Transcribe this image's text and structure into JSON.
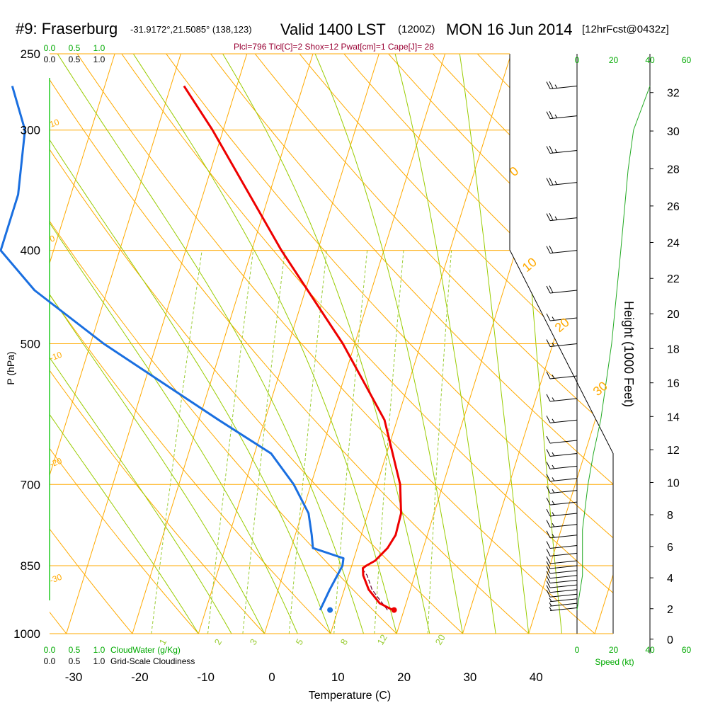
{
  "header": {
    "station": "#9: Fraserburg",
    "coords": "-31.9172°,21.5085° (138,123)",
    "valid": "Valid 1400 LST",
    "zulu": "(1200Z)",
    "date": "MON 16 Jun 2014",
    "forecast": "[12hrFcst@0432z]",
    "stats": "Plcl=796 Tlcl[C]=2 Shox=12 Pwat[cm]=1 Cape[J]= 28"
  },
  "colors": {
    "isotherm": "#ffaa00",
    "isobar": "#ffaa00",
    "dry_adiabat": "#ffaa00",
    "moist_adiabat": "#99cc00",
    "mixing_ratio": "#99cc33",
    "temperature": "#ee0000",
    "dewpoint": "#1a6fe0",
    "parcel": "#660033",
    "speed": "#22aa22",
    "green_text": "#00aa00"
  },
  "chart_data": {
    "type": "skew-t",
    "xlabel": "Temperature (C)",
    "ylabel": "P (hPa)",
    "y2label": "Height (1000 Feet)",
    "pressure_ticks": [
      "250",
      "300",
      "400",
      "500",
      "700",
      "850",
      "1000"
    ],
    "temperature_ticks": [
      "-30",
      "-20",
      "-10",
      "0",
      "10",
      "20",
      "30",
      "40"
    ],
    "height_ticks": [
      "0",
      "2",
      "4",
      "6",
      "8",
      "10",
      "12",
      "14",
      "16",
      "18",
      "20",
      "22",
      "24",
      "26",
      "28",
      "30",
      "32"
    ],
    "dry_adiabat_labels": [
      "10",
      "0",
      "-10",
      "-20",
      "-30",
      "0",
      "10",
      "20",
      "30"
    ],
    "mixing_ratio_labels": [
      "1",
      "2",
      "3",
      "5",
      "8",
      "12",
      "20"
    ],
    "cloud_top_labels": [
      "0.0",
      "0.5",
      "1.0"
    ],
    "cloud_top_labels2": [
      "0.0",
      "0.5",
      "1.0"
    ],
    "cloud_bottom_labels": [
      "0.0",
      "0.5",
      "1.0"
    ],
    "cloud_bottom_labels2": [
      "0.0",
      "0.5",
      "1.0"
    ],
    "cloudwater_label": "CloudWater (g/Kg)",
    "cloudiness_label": "Grid-Scale Cloudiness",
    "speed_label": "Speed (kt)",
    "speed_ticks": [
      "0",
      "20",
      "40",
      "60"
    ],
    "temperature_profile": [
      {
        "p": 945,
        "t": 18.3
      },
      {
        "p": 930,
        "t": 16.0
      },
      {
        "p": 900,
        "t": 13.7
      },
      {
        "p": 870,
        "t": 12.2
      },
      {
        "p": 855,
        "t": 11.8
      },
      {
        "p": 850,
        "t": 12.2
      },
      {
        "p": 840,
        "t": 13.3
      },
      {
        "p": 815,
        "t": 14.6
      },
      {
        "p": 790,
        "t": 15.2
      },
      {
        "p": 750,
        "t": 15.0
      },
      {
        "p": 700,
        "t": 13.5
      },
      {
        "p": 600,
        "t": 8.1
      },
      {
        "p": 500,
        "t": -1.8
      },
      {
        "p": 400,
        "t": -15.5
      },
      {
        "p": 300,
        "t": -31.6
      },
      {
        "p": 270,
        "t": -38.0
      }
    ],
    "dewpoint_profile": [
      {
        "p": 945,
        "t": 7.3
      },
      {
        "p": 900,
        "t": 7.8
      },
      {
        "p": 850,
        "t": 8.6
      },
      {
        "p": 835,
        "t": 8.4
      },
      {
        "p": 815,
        "t": 3.3
      },
      {
        "p": 790,
        "t": 2.5
      },
      {
        "p": 750,
        "t": 1.0
      },
      {
        "p": 700,
        "t": -2.6
      },
      {
        "p": 650,
        "t": -7.5
      },
      {
        "p": 600,
        "t": -17.0
      },
      {
        "p": 500,
        "t": -38.0
      },
      {
        "p": 440,
        "t": -51.0
      },
      {
        "p": 400,
        "t": -58.0
      },
      {
        "p": 350,
        "t": -58.0
      },
      {
        "p": 300,
        "t": -60.0
      },
      {
        "p": 270,
        "t": -64.0
      }
    ],
    "parcel_profile": [
      {
        "p": 945,
        "t": 17.5
      },
      {
        "p": 900,
        "t": 14.2
      },
      {
        "p": 870,
        "t": 12.8
      },
      {
        "p": 860,
        "t": 12.0
      }
    ],
    "surface_temperature": 18.5,
    "surface_dewpoint": 8.8,
    "wind_speed_profile": [
      {
        "p": 945,
        "kt": 0
      },
      {
        "p": 870,
        "kt": 3
      },
      {
        "p": 820,
        "kt": 3
      },
      {
        "p": 780,
        "kt": 3
      },
      {
        "p": 700,
        "kt": 6
      },
      {
        "p": 650,
        "kt": 9
      },
      {
        "p": 600,
        "kt": 13
      },
      {
        "p": 500,
        "kt": 19
      },
      {
        "p": 400,
        "kt": 24
      },
      {
        "p": 330,
        "kt": 28
      },
      {
        "p": 300,
        "kt": 31
      },
      {
        "p": 270,
        "kt": 40
      }
    ],
    "wind_barbs": [
      {
        "p": 940,
        "kt": 8
      },
      {
        "p": 930,
        "kt": 8
      },
      {
        "p": 920,
        "kt": 9
      },
      {
        "p": 910,
        "kt": 10
      },
      {
        "p": 900,
        "kt": 10
      },
      {
        "p": 890,
        "kt": 10
      },
      {
        "p": 880,
        "kt": 12
      },
      {
        "p": 870,
        "kt": 10
      },
      {
        "p": 860,
        "kt": 10
      },
      {
        "p": 850,
        "kt": 10
      },
      {
        "p": 840,
        "kt": 10
      },
      {
        "p": 825,
        "kt": 12
      },
      {
        "p": 810,
        "kt": 14
      },
      {
        "p": 790,
        "kt": 15
      },
      {
        "p": 770,
        "kt": 15
      },
      {
        "p": 750,
        "kt": 15
      },
      {
        "p": 730,
        "kt": 15
      },
      {
        "p": 710,
        "kt": 15
      },
      {
        "p": 690,
        "kt": 15
      },
      {
        "p": 670,
        "kt": 15
      },
      {
        "p": 650,
        "kt": 15
      },
      {
        "p": 630,
        "kt": 10
      },
      {
        "p": 600,
        "kt": 15
      },
      {
        "p": 570,
        "kt": 15
      },
      {
        "p": 540,
        "kt": 15
      },
      {
        "p": 500,
        "kt": 15
      },
      {
        "p": 470,
        "kt": 15
      },
      {
        "p": 440,
        "kt": 20
      },
      {
        "p": 400,
        "kt": 20
      },
      {
        "p": 370,
        "kt": 25
      },
      {
        "p": 340,
        "kt": 25
      },
      {
        "p": 315,
        "kt": 25
      },
      {
        "p": 290,
        "kt": 25
      },
      {
        "p": 270,
        "kt": 25
      }
    ]
  }
}
